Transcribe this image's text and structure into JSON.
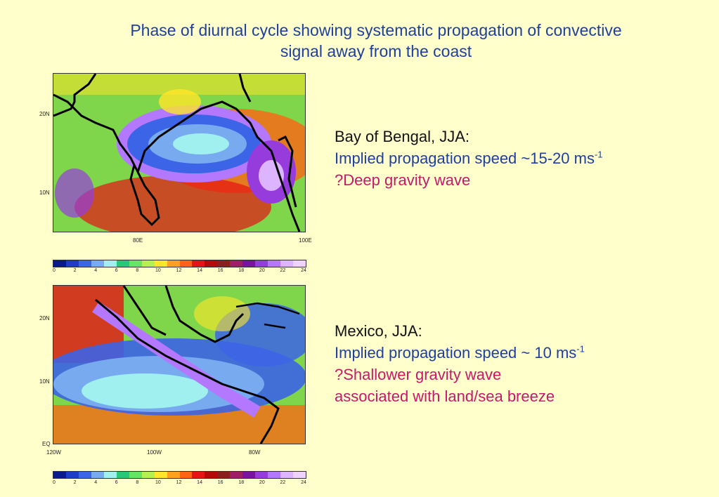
{
  "title_line1": "Phase of diurnal cycle showing systematic propagation of convective",
  "title_line2": "signal away from the coast",
  "map1": {
    "lat_ticks": [
      "20N",
      "10N"
    ],
    "lon_ticks": [
      "80E",
      "100E"
    ]
  },
  "map2": {
    "lat_ticks": [
      "20N",
      "10N",
      "EQ"
    ],
    "lon_ticks": [
      "120W",
      "100W",
      "80W"
    ]
  },
  "colorbar": {
    "labels": [
      "0",
      "2",
      "4",
      "6",
      "8",
      "10",
      "12",
      "14",
      "16",
      "18",
      "20",
      "22",
      "24"
    ],
    "colors": [
      "#0a1a8c",
      "#1e3cc8",
      "#3c64e6",
      "#78aaf0",
      "#a0f0f0",
      "#28c878",
      "#64e664",
      "#b4f050",
      "#ffe628",
      "#ffa01e",
      "#ff6414",
      "#e61414",
      "#b40a0a",
      "#8c1e1e",
      "#a01e64",
      "#7814a0",
      "#963cdc",
      "#b478ff",
      "#dcb4ff",
      "#f0d2ff"
    ]
  },
  "caption1": {
    "heading": "Bay of Bengal, JJA:",
    "speed": "Implied propagation speed ~15-20 ms",
    "speed_exp": "-1",
    "note": "?Deep gravity wave"
  },
  "caption2": {
    "heading": "Mexico, JJA:",
    "speed": "Implied propagation speed ~ 10 ms",
    "speed_exp": "-1",
    "note1": "?Shallower gravity wave",
    "note2": "associated with land/sea breeze"
  }
}
